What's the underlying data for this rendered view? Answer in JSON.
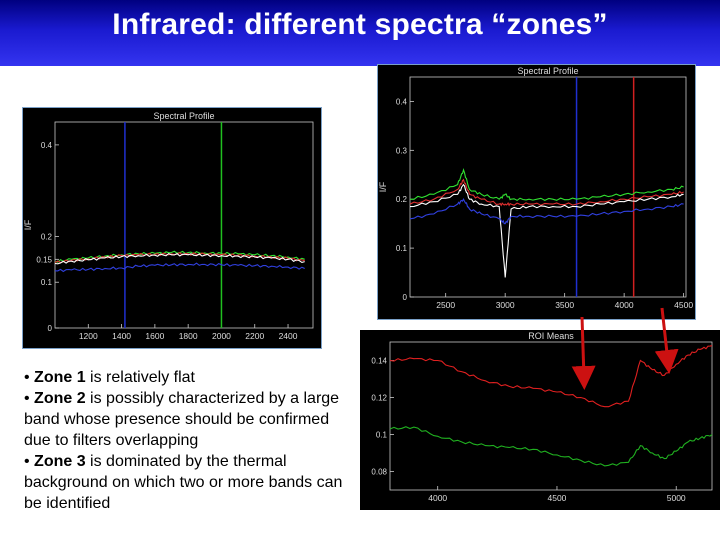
{
  "slide": {
    "title": "Infrared: different spectra “zones”",
    "bullets": [
      {
        "prefix": "• ",
        "zone": "Zone 1",
        "text": " is relatively flat"
      },
      {
        "prefix": "• ",
        "zone": "Zone 2",
        "text": " is possibly characterized by a large band whose presence should be confirmed  due to filters overlapping"
      },
      {
        "prefix": "• ",
        "zone": "Zone 3",
        "text": " is dominated by the thermal background on which two  or more bands can be identified"
      }
    ],
    "colors": {
      "title_bg": "#1a1ad0",
      "title_text": "#ffffff",
      "arrow": "#cc1111"
    }
  },
  "chart_data": [
    {
      "type": "line",
      "title": "Spectral Profile",
      "ylabel": "I/F",
      "xlim": [
        1000,
        2550
      ],
      "ylim": [
        0.0,
        0.45
      ],
      "x_ticks": [
        1200,
        1400,
        1600,
        1800,
        2000,
        2200,
        2400
      ],
      "y_ticks": [
        0.0,
        0.1,
        0.15,
        0.2,
        0.4
      ],
      "markers": [
        {
          "x": 1420,
          "color": "#2030d0"
        },
        {
          "x": 2000,
          "color": "#20c020"
        }
      ],
      "series": [
        {
          "color": "#30e030",
          "x": [
            1000,
            1100,
            1200,
            1300,
            1400,
            1500,
            1600,
            1700,
            1800,
            1900,
            2000,
            2100,
            2200,
            2300,
            2400,
            2500
          ],
          "values": [
            0.145,
            0.15,
            0.153,
            0.157,
            0.16,
            0.162,
            0.163,
            0.165,
            0.165,
            0.164,
            0.163,
            0.162,
            0.16,
            0.158,
            0.155,
            0.15
          ]
        },
        {
          "color": "#e03030",
          "x": [
            1000,
            1100,
            1200,
            1300,
            1400,
            1500,
            1600,
            1700,
            1800,
            1900,
            2000,
            2100,
            2200,
            2300,
            2400,
            2500
          ],
          "values": [
            0.143,
            0.148,
            0.151,
            0.155,
            0.158,
            0.16,
            0.161,
            0.162,
            0.162,
            0.161,
            0.16,
            0.159,
            0.157,
            0.155,
            0.152,
            0.147
          ]
        },
        {
          "color": "#ffffff",
          "x": [
            1000,
            1100,
            1200,
            1300,
            1400,
            1500,
            1600,
            1700,
            1800,
            1900,
            2000,
            2100,
            2200,
            2300,
            2400,
            2500
          ],
          "values": [
            0.141,
            0.146,
            0.149,
            0.153,
            0.156,
            0.158,
            0.159,
            0.16,
            0.16,
            0.159,
            0.158,
            0.157,
            0.155,
            0.153,
            0.15,
            0.145
          ]
        },
        {
          "color": "#3040e0",
          "x": [
            1000,
            1100,
            1200,
            1300,
            1400,
            1500,
            1600,
            1700,
            1800,
            1900,
            2000,
            2100,
            2200,
            2300,
            2400,
            2500
          ],
          "values": [
            0.125,
            0.127,
            0.128,
            0.13,
            0.131,
            0.135,
            0.137,
            0.138,
            0.139,
            0.139,
            0.138,
            0.137,
            0.136,
            0.135,
            0.133,
            0.13
          ]
        }
      ]
    },
    {
      "type": "line",
      "title": "Spectral Profile",
      "ylabel": "I/F",
      "xlim": [
        2200,
        4520
      ],
      "ylim": [
        0.0,
        0.45
      ],
      "x_ticks": [
        2500,
        3000,
        3500,
        4000,
        4500
      ],
      "y_ticks": [
        0.0,
        0.1,
        0.2,
        0.3,
        0.4
      ],
      "markers": [
        {
          "x": 3600,
          "color": "#2030d0"
        },
        {
          "x": 4080,
          "color": "#d02020"
        }
      ],
      "series": [
        {
          "color": "#30e030",
          "x": [
            2200,
            2400,
            2600,
            2650,
            2700,
            2800,
            2950,
            3000,
            3050,
            3200,
            3400,
            3600,
            3800,
            4000,
            4200,
            4400,
            4500
          ],
          "values": [
            0.2,
            0.21,
            0.23,
            0.26,
            0.22,
            0.21,
            0.2,
            0.21,
            0.2,
            0.2,
            0.2,
            0.2,
            0.205,
            0.21,
            0.215,
            0.22,
            0.225
          ]
        },
        {
          "color": "#e03030",
          "x": [
            2200,
            2400,
            2600,
            2650,
            2700,
            2800,
            2950,
            3000,
            3050,
            3200,
            3400,
            3600,
            3800,
            4000,
            4200,
            4400,
            4500
          ],
          "values": [
            0.19,
            0.2,
            0.22,
            0.24,
            0.21,
            0.2,
            0.19,
            0.19,
            0.19,
            0.19,
            0.19,
            0.19,
            0.195,
            0.2,
            0.205,
            0.21,
            0.215
          ]
        },
        {
          "color": "#ffffff",
          "x": [
            2200,
            2400,
            2600,
            2650,
            2700,
            2800,
            2950,
            3000,
            3050,
            3200,
            3400,
            3600,
            3800,
            4000,
            4200,
            4400,
            4500
          ],
          "values": [
            0.185,
            0.195,
            0.21,
            0.23,
            0.2,
            0.19,
            0.185,
            0.04,
            0.18,
            0.185,
            0.185,
            0.185,
            0.19,
            0.195,
            0.2,
            0.205,
            0.21
          ]
        },
        {
          "color": "#3040e0",
          "x": [
            2200,
            2400,
            2600,
            2650,
            2700,
            2800,
            2950,
            3000,
            3050,
            3200,
            3400,
            3600,
            3800,
            4000,
            4200,
            4400,
            4500
          ],
          "values": [
            0.16,
            0.17,
            0.19,
            0.2,
            0.18,
            0.17,
            0.16,
            0.15,
            0.165,
            0.165,
            0.165,
            0.165,
            0.17,
            0.175,
            0.18,
            0.185,
            0.19
          ]
        }
      ]
    },
    {
      "type": "line",
      "title": "ROI Means",
      "ylabel": "",
      "xlim": [
        3800,
        5150
      ],
      "ylim": [
        0.07,
        0.15
      ],
      "x_ticks": [
        4000,
        4500,
        5000
      ],
      "y_ticks": [
        0.08,
        0.1,
        0.12,
        0.14
      ],
      "series": [
        {
          "color": "#e02020",
          "x": [
            3800,
            3900,
            4000,
            4100,
            4200,
            4300,
            4400,
            4500,
            4600,
            4700,
            4800,
            4850,
            4900,
            4950,
            5000,
            5050,
            5100,
            5150
          ],
          "values": [
            0.14,
            0.141,
            0.14,
            0.134,
            0.129,
            0.126,
            0.125,
            0.123,
            0.12,
            0.115,
            0.118,
            0.14,
            0.135,
            0.132,
            0.138,
            0.143,
            0.146,
            0.148
          ]
        },
        {
          "color": "#20b020",
          "x": [
            3800,
            3900,
            4000,
            4100,
            4200,
            4300,
            4400,
            4500,
            4600,
            4700,
            4800,
            4850,
            4900,
            4950,
            5000,
            5050,
            5100,
            5150
          ],
          "values": [
            0.103,
            0.104,
            0.099,
            0.096,
            0.094,
            0.093,
            0.092,
            0.089,
            0.086,
            0.083,
            0.085,
            0.094,
            0.09,
            0.087,
            0.091,
            0.096,
            0.098,
            0.1
          ]
        }
      ]
    }
  ]
}
